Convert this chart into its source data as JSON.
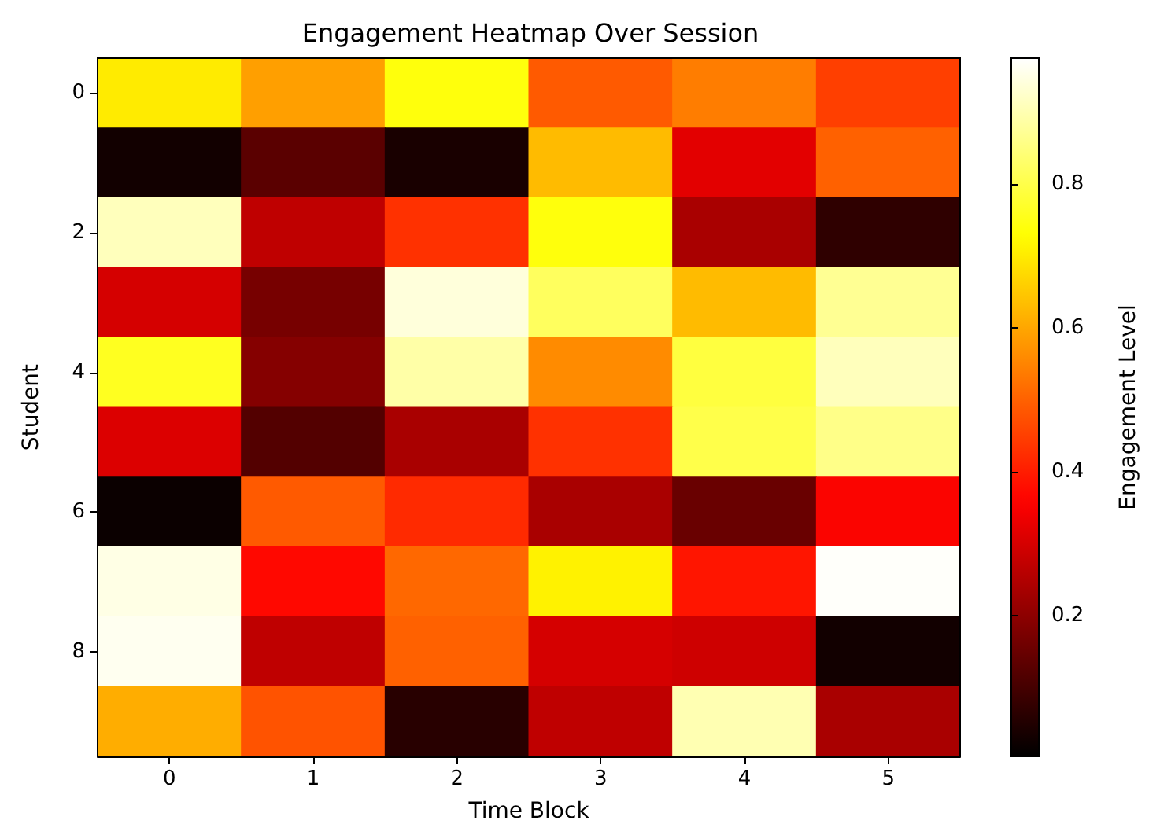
{
  "chart_data": {
    "type": "heatmap",
    "title": "Engagement Heatmap Over Session",
    "xlabel": "Time Block",
    "ylabel": "Student",
    "clabel": "Engagement Level",
    "categories": [
      "0",
      "1",
      "2",
      "3",
      "4",
      "5"
    ],
    "y_categories": [
      "0",
      null,
      "2",
      null,
      "4",
      null,
      "6",
      null,
      "8",
      null
    ],
    "cells": [
      [
        0.7,
        0.59,
        0.74,
        0.49,
        0.54,
        0.45
      ],
      [
        0.03,
        0.13,
        0.04,
        0.63,
        0.32,
        0.5
      ],
      [
        0.91,
        0.27,
        0.43,
        0.74,
        0.24,
        0.07
      ],
      [
        0.3,
        0.17,
        0.94,
        0.82,
        0.63,
        0.87
      ],
      [
        0.76,
        0.19,
        0.89,
        0.56,
        0.79,
        0.91
      ],
      [
        0.31,
        0.12,
        0.24,
        0.43,
        0.8,
        0.86
      ],
      [
        0.02,
        0.49,
        0.42,
        0.24,
        0.15,
        0.36
      ],
      [
        0.95,
        0.37,
        0.51,
        0.71,
        0.39,
        0.97
      ],
      [
        0.96,
        0.27,
        0.5,
        0.3,
        0.29,
        0.03
      ],
      [
        0.61,
        0.48,
        0.06,
        0.27,
        0.9,
        0.24
      ]
    ],
    "clim": [
      0.005,
      0.975
    ],
    "cticks": [
      0.2,
      0.4,
      0.6,
      0.8
    ]
  }
}
